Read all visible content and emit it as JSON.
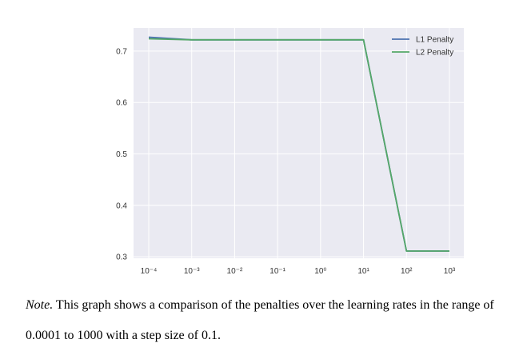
{
  "chart_data": {
    "type": "line",
    "title": "",
    "xlabel": "",
    "ylabel": "",
    "x_scale": "log",
    "x": [
      0.0001,
      0.001,
      0.01,
      0.1,
      1,
      10,
      100,
      1000
    ],
    "x_tick_labels": [
      "10⁻⁴",
      "10⁻³",
      "10⁻²",
      "10⁻¹",
      "10⁰",
      "10¹",
      "10²",
      "10³"
    ],
    "y_ticks": [
      0.3,
      0.4,
      0.5,
      0.6,
      0.7
    ],
    "y_tick_labels": [
      "0.3",
      "0.4",
      "0.5",
      "0.6",
      "0.7"
    ],
    "ylim": [
      0.297,
      0.745
    ],
    "grid": true,
    "legend_position": "top-right",
    "series": [
      {
        "name": "L1 Penalty",
        "color": "#4c72b0",
        "values": [
          0.727,
          0.722,
          0.722,
          0.722,
          0.722,
          0.722,
          0.311,
          0.311
        ]
      },
      {
        "name": "L2 Penalty",
        "color": "#55a868",
        "values": [
          0.724,
          0.722,
          0.722,
          0.722,
          0.722,
          0.722,
          0.311,
          0.311
        ]
      }
    ]
  },
  "caption": {
    "note_label": "Note.",
    "line1_text": " This graph shows a comparison of the penalties over the learning rates in the range of",
    "line2_text": "0.0001 to 1000 with a step size of 0.1."
  },
  "colors": {
    "plot_background": "#eaeaf2",
    "grid": "#ffffff"
  }
}
